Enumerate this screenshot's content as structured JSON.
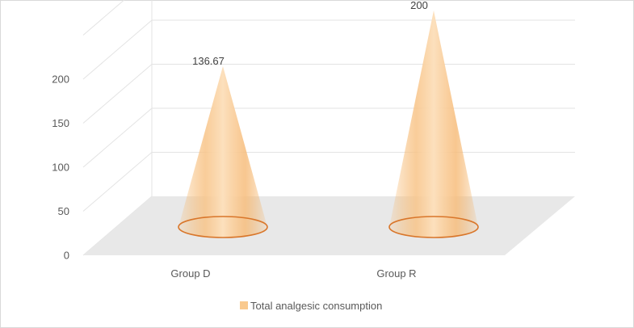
{
  "chart_data": {
    "type": "bar",
    "subtype": "3d-cone",
    "categories": [
      "Group D",
      "Group R"
    ],
    "series": [
      {
        "name": "Total analgesic consumption",
        "values": [
          136.67,
          200
        ]
      }
    ],
    "data_labels": [
      "136.67",
      "200"
    ],
    "y_ticks": [
      "0",
      "50",
      "100",
      "150",
      "200"
    ],
    "ylim": [
      0,
      250
    ],
    "grid": true,
    "legend_position": "bottom",
    "colors": {
      "cone_fill": "#f9c98e",
      "cone_rim": "#d9762a",
      "floor": "#e8e8e8",
      "gridline": "#e3e3e3"
    }
  }
}
